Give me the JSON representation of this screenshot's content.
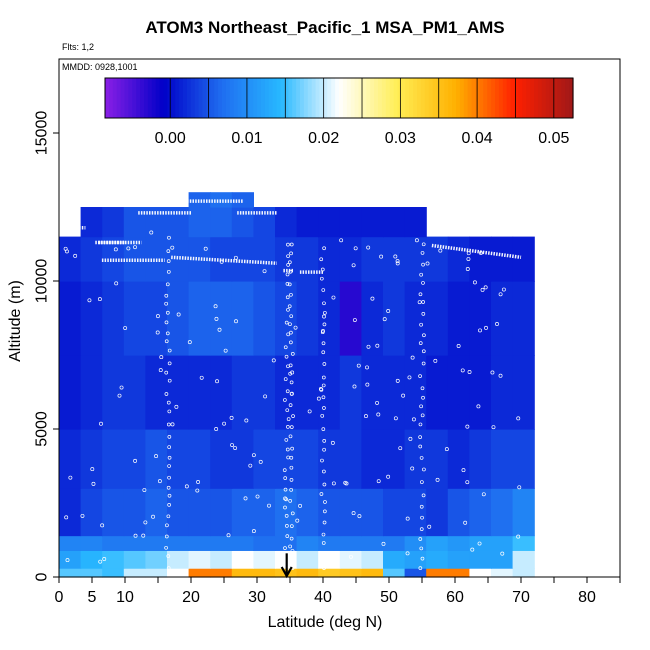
{
  "chart_data": {
    "type": "heatmap",
    "title": "ATOM3 Northeast_Pacific_1 MSA_PM1_AMS",
    "notes": {
      "flights": "Flts: 1,2",
      "dates": "MMDD: 0928,1001"
    },
    "xlabel": "Latitude (deg N)",
    "ylabel": "Altitude (m)",
    "xlim": [
      0,
      85
    ],
    "ylim": [
      0,
      17500
    ],
    "x_ticks": [
      0,
      5,
      10,
      20,
      30,
      40,
      50,
      60,
      70,
      80
    ],
    "x_minor_ticks": [
      15,
      25,
      35,
      45,
      55,
      65,
      75,
      85
    ],
    "y_ticks": [
      0,
      5000,
      10000,
      15000
    ],
    "colorbar": {
      "range": [
        -0.0085,
        0.0525
      ],
      "ticks": [
        "0.00",
        "0.01",
        "0.02",
        "0.03",
        "0.04",
        "0.05"
      ],
      "tick_values": [
        0.0,
        0.01,
        0.02,
        0.03,
        0.04,
        0.05
      ],
      "colors": [
        "#8b1fe6",
        "#0000c8",
        "#1f6ef0",
        "#27b8ff",
        "#ffffff",
        "#ffee55",
        "#ffb000",
        "#ff2000",
        "#a01818"
      ]
    },
    "curtain_latitude_range": [
      0,
      72
    ],
    "curtain_altitude_range": [
      0,
      13000
    ],
    "altitude_bands_m": [
      {
        "from": 0,
        "to": 300,
        "values": [
          0.016,
          0.016,
          0.015,
          0.02,
          0.02,
          0.022,
          0.04,
          0.04,
          0.036,
          0.036,
          0.035,
          0.036,
          0.034,
          0.035,
          0.036,
          0.016,
          0.005,
          0.04,
          0.04,
          0.022,
          0.021,
          0.02
        ]
      },
      {
        "from": 300,
        "to": 900,
        "values": [
          0.012,
          0.014,
          0.015,
          0.016,
          0.017,
          0.02,
          0.021,
          0.02,
          0.022,
          0.021,
          0.022,
          0.02,
          0.022,
          0.021,
          0.02,
          0.013,
          0.012,
          0.013,
          0.012,
          0.012,
          0.012,
          0.02
        ]
      },
      {
        "from": 900,
        "to": 1400,
        "values": [
          0.009,
          0.009,
          0.008,
          0.008,
          0.008,
          0.008,
          0.008,
          0.008,
          0.008,
          0.007,
          0.007,
          0.009,
          0.008,
          0.008,
          0.008,
          0.008,
          0.01,
          0.012,
          0.011,
          0.012,
          0.012,
          0.015
        ]
      },
      {
        "from": 1400,
        "to": 3000,
        "values": [
          0.002,
          0.004,
          0.005,
          0.005,
          0.006,
          0.005,
          0.005,
          0.005,
          0.006,
          0.006,
          0.007,
          0.006,
          0.005,
          0.005,
          0.005,
          0.004,
          0.004,
          0.003,
          0.005,
          0.006,
          0.007,
          0.009
        ]
      },
      {
        "from": 3000,
        "to": 5000,
        "values": [
          0.002,
          0.003,
          0.004,
          0.004,
          0.005,
          0.004,
          0.004,
          0.003,
          0.003,
          0.004,
          0.004,
          0.004,
          0.003,
          0.003,
          0.002,
          0.002,
          0.003,
          0.003,
          0.002,
          0.003,
          0.004,
          0.004
        ]
      },
      {
        "from": 5000,
        "to": 7500,
        "values": [
          0.001,
          0.002,
          0.003,
          0.003,
          0.002,
          0.002,
          0.002,
          0.002,
          0.003,
          0.003,
          0.002,
          0.002,
          0.002,
          0.003,
          0.002,
          0.002,
          0.002,
          0.001,
          0.001,
          0.001,
          0.002,
          0.002
        ]
      },
      {
        "from": 7500,
        "to": 10000,
        "values": [
          0.001,
          0.002,
          0.003,
          0.004,
          0.004,
          0.005,
          0.006,
          0.006,
          0.006,
          0.005,
          0.004,
          0.003,
          0.002,
          -0.003,
          0.002,
          0.003,
          0.002,
          0.002,
          0.001,
          0.001,
          0.002,
          0.002
        ]
      },
      {
        "from": 10000,
        "to": 11500,
        "values": [
          0.002,
          0.003,
          0.004,
          0.005,
          0.005,
          0.005,
          0.005,
          0.004,
          0.004,
          0.004,
          0.003,
          0.003,
          0.002,
          0.002,
          0.003,
          0.003,
          0.003,
          0.003,
          0.002,
          0.001,
          0.001,
          0.001
        ]
      },
      {
        "from": 11500,
        "to": 12500,
        "values": [
          null,
          0.002,
          0.003,
          0.005,
          0.005,
          0.005,
          0.006,
          0.006,
          0.005,
          0.004,
          0.002,
          0.001,
          0.001,
          0.001,
          0.001,
          0.001,
          0.001,
          null,
          null,
          null,
          null,
          null
        ]
      },
      {
        "from": 12500,
        "to": 13000,
        "values": [
          null,
          null,
          null,
          null,
          null,
          null,
          0.006,
          0.007,
          0.006,
          null,
          null,
          null,
          null,
          null,
          null,
          null,
          null,
          null,
          null,
          null,
          null,
          null
        ]
      }
    ],
    "flight_track_segments": [
      {
        "lat": [
          1.0,
          4.0
        ],
        "alt": [
          11800,
          11800
        ]
      },
      {
        "lat": [
          5.5,
          12.5
        ],
        "alt": [
          11300,
          11300
        ]
      },
      {
        "lat": [
          12.0,
          20.0
        ],
        "alt": [
          12300,
          12300
        ]
      },
      {
        "lat": [
          6.0,
          10.0
        ],
        "alt": [
          11300,
          11300
        ]
      },
      {
        "lat": [
          6.5,
          16.0
        ],
        "alt": [
          10700,
          10700
        ]
      },
      {
        "lat": [
          17.0,
          33.0
        ],
        "alt": [
          10800,
          10600
        ]
      },
      {
        "lat": [
          19.0,
          28.0
        ],
        "alt": [
          12700,
          12700
        ]
      },
      {
        "lat": [
          27.0,
          33.0
        ],
        "alt": [
          12300,
          12300
        ]
      },
      {
        "lat": [
          34.0,
          35.5
        ],
        "alt": [
          10350,
          10350
        ]
      },
      {
        "lat": [
          36.5,
          40.0
        ],
        "alt": [
          10300,
          10300
        ]
      },
      {
        "lat": [
          56.5,
          70.0
        ],
        "alt": [
          11200,
          10800
        ]
      }
    ],
    "vertical_profile_latitudes": [
      16.5,
      34.5,
      35.2,
      40.0,
      55.0
    ]
  }
}
